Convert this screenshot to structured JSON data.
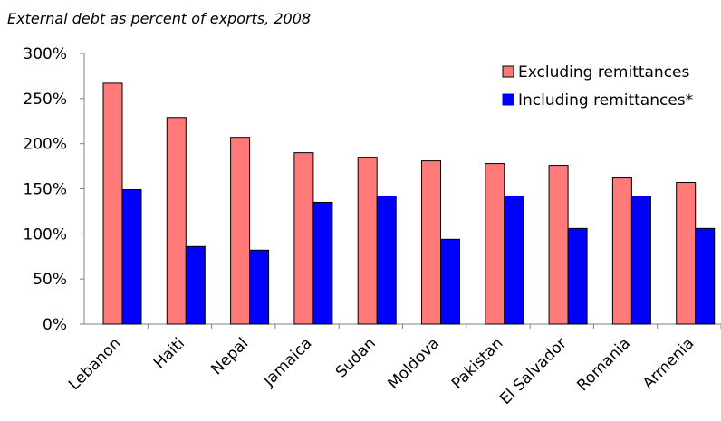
{
  "chart_data": {
    "type": "bar",
    "title": "External debt as percent of exports, 2008",
    "xlabel": "",
    "ylabel": "",
    "categories": [
      "Lebanon",
      "Haiti",
      "Nepal",
      "Jamaica",
      "Sudan",
      "Moldova",
      "Pakistan",
      "El Salvador",
      "Romania",
      "Armenia"
    ],
    "series": [
      {
        "name": "Excluding remittances",
        "color": "#ff7a78",
        "values": [
          267,
          229,
          207,
          190,
          185,
          181,
          178,
          176,
          162,
          157
        ]
      },
      {
        "name": "Including remittances*",
        "color": "#0000ff",
        "values": [
          149,
          86,
          82,
          135,
          142,
          94,
          142,
          106,
          142,
          106
        ]
      }
    ],
    "ylim": [
      0,
      300
    ],
    "yticks": [
      "0%",
      "50%",
      "100%",
      "150%",
      "200%",
      "250%",
      "300%"
    ],
    "grid": false,
    "legend": "top-right"
  }
}
